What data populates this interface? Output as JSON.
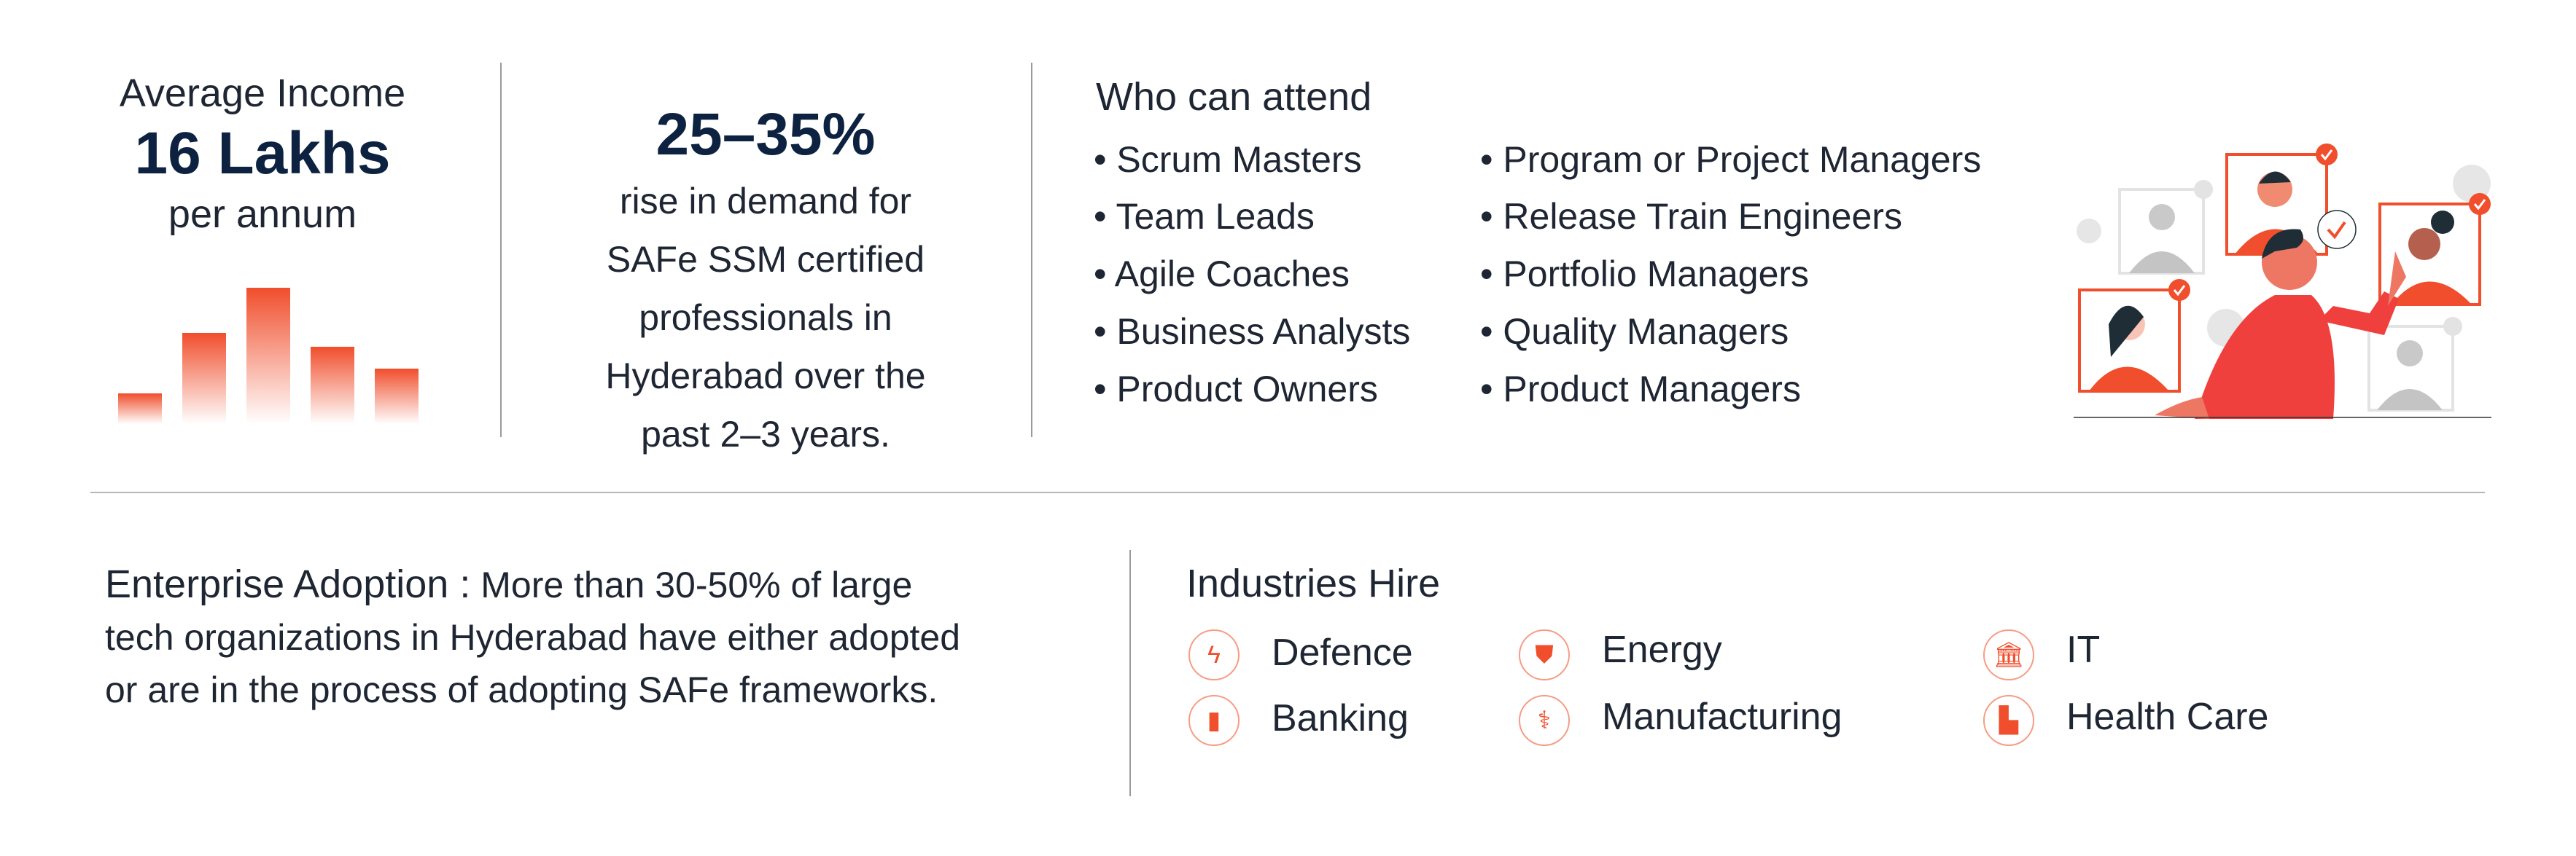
{
  "income": {
    "label": "Average Income",
    "value": "16 Lakhs",
    "unit": "per annum",
    "bar_relative_heights": [
      20,
      59,
      88,
      50,
      36
    ],
    "bar_color": "#f04e2c"
  },
  "demand": {
    "value": "25–35%",
    "lines": [
      "rise in demand for",
      "SAFe SSM certified",
      "professionals in",
      "Hyderabad over the",
      "past 2–3 years."
    ]
  },
  "attend": {
    "title": "Who can attend",
    "col1": [
      "Scrum Masters",
      "Team Leads",
      "Agile Coaches",
      "Business Analysts",
      "Product Owners"
    ],
    "col2": [
      "Program or Project Managers",
      "Release Train Engineers",
      "Portfolio Managers",
      "Quality Managers",
      "Product Managers"
    ]
  },
  "enterprise": {
    "label": "Enterprise Adoption :",
    "lines": [
      "More than 30-50% of large",
      "tech organizations in Hyderabad have either adopted",
      "or are in the process of adopting SAFe frameworks."
    ]
  },
  "industries": {
    "title": "Industries Hire",
    "items": [
      {
        "label": "Defence",
        "icon": "lightning-icon"
      },
      {
        "label": "Energy",
        "icon": "shield-icon"
      },
      {
        "label": "IT",
        "icon": "building-icon"
      },
      {
        "label": "Banking",
        "icon": "mouse-icon"
      },
      {
        "label": "Manufacturing",
        "icon": "stethoscope-icon"
      },
      {
        "label": "Health Care",
        "icon": "factory-icon"
      }
    ]
  },
  "colors": {
    "accent": "#f04e2c",
    "text": "#1f2633",
    "heading": "#0d2240"
  }
}
